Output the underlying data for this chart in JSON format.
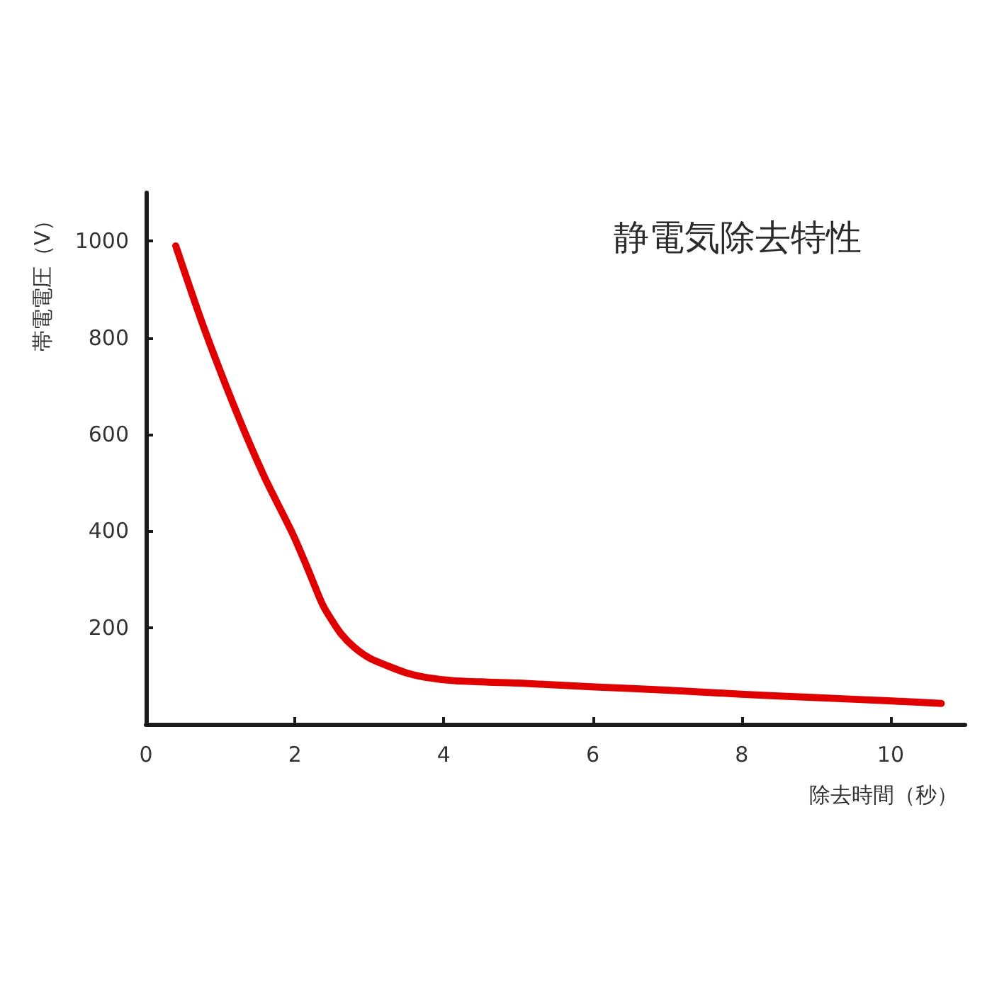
{
  "chart_data": {
    "type": "line",
    "title": "静電気除去特性",
    "xlabel": "除去時間（秒）",
    "ylabel": "帯電電圧（V）",
    "x": [
      0.4,
      0.77,
      1.21,
      1.59,
      1.97,
      2.15,
      2.29,
      2.38,
      2.48,
      2.62,
      2.79,
      3.0,
      3.24,
      3.5,
      3.75,
      4.13,
      4.6,
      5.01,
      6.03,
      7.04,
      7.99,
      9.0,
      10.02,
      10.68
    ],
    "series": [
      {
        "color": "#e00000",
        "values": [
          990,
          824,
          648,
          512,
          394,
          330,
          277,
          245,
          219,
          187,
          160,
          137,
          121,
          106,
          97,
          90,
          87,
          85,
          77,
          70,
          62,
          55,
          48,
          43
        ]
      }
    ],
    "xlim": [
      0,
      11
    ],
    "ylim": [
      0,
      1100
    ],
    "xticks": [
      0,
      2,
      4,
      6,
      8,
      10
    ],
    "yticks": [
      200,
      400,
      600,
      800,
      1000
    ]
  }
}
